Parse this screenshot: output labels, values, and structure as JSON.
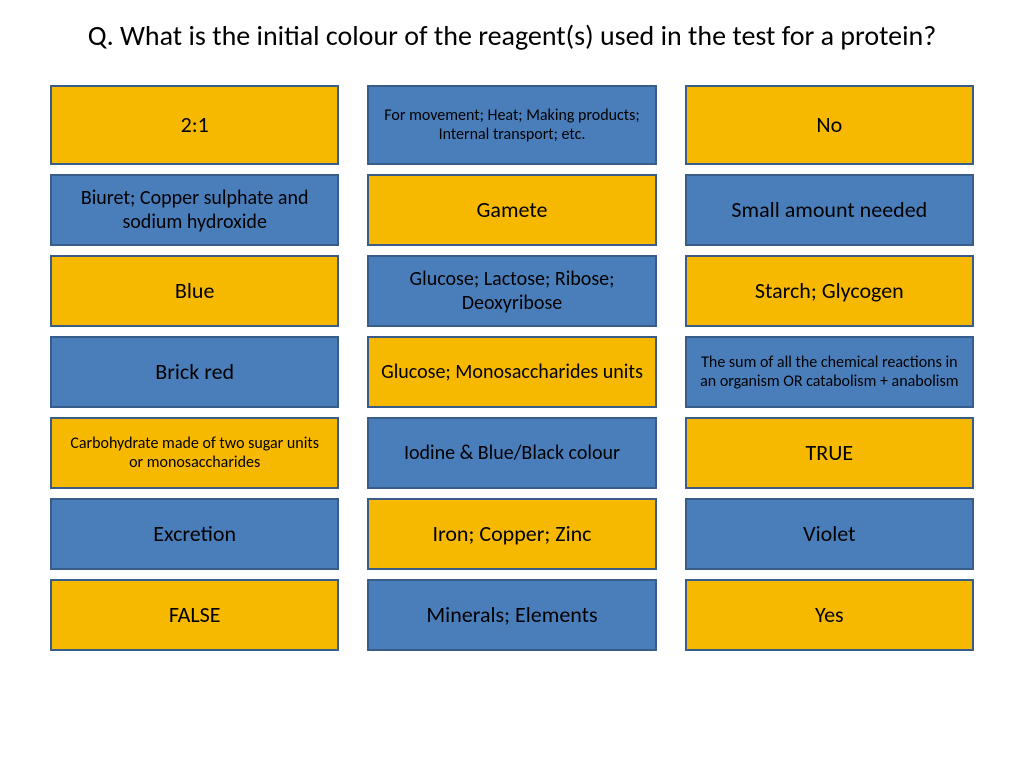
{
  "title": "Q. What is the initial colour of the reagent(s) used in the test for a protein?",
  "colors": {
    "blue_bg": "#4a7ebb",
    "gold_bg": "#f6b900",
    "border": "#385d8a",
    "text": "#000000",
    "page_bg": "#ffffff"
  },
  "columns": [
    {
      "cards": [
        {
          "text": "2:1",
          "bg": "gold",
          "size": "lg",
          "tall": true
        },
        {
          "text": "Biuret; Copper sulphate and sodium hydroxide",
          "bg": "blue",
          "size": "md"
        },
        {
          "text": "Blue",
          "bg": "gold",
          "size": "lg"
        },
        {
          "text": "Brick red",
          "bg": "blue",
          "size": "lg"
        },
        {
          "text": "Carbohydrate made of two sugar units or monosaccharides",
          "bg": "gold",
          "size": "sm"
        },
        {
          "text": "Excretion",
          "bg": "blue",
          "size": "lg"
        },
        {
          "text": "FALSE",
          "bg": "gold",
          "size": "lg"
        }
      ]
    },
    {
      "cards": [
        {
          "text": "For movement; Heat; Making products; Internal transport; etc.",
          "bg": "blue",
          "size": "sm",
          "tall": true
        },
        {
          "text": "Gamete",
          "bg": "gold",
          "size": "lg"
        },
        {
          "text": "Glucose; Lactose; Ribose; Deoxyribose",
          "bg": "blue",
          "size": "md"
        },
        {
          "text": "Glucose; Monosaccharides units",
          "bg": "gold",
          "size": "md"
        },
        {
          "text": "Iodine & Blue/Black colour",
          "bg": "blue",
          "size": "md"
        },
        {
          "text": "Iron; Copper; Zinc",
          "bg": "gold",
          "size": "lg"
        },
        {
          "text": "Minerals; Elements",
          "bg": "blue",
          "size": "lg"
        }
      ]
    },
    {
      "cards": [
        {
          "text": "No",
          "bg": "gold",
          "size": "lg",
          "tall": true
        },
        {
          "text": "Small amount needed",
          "bg": "blue",
          "size": "lg"
        },
        {
          "text": "Starch; Glycogen",
          "bg": "gold",
          "size": "lg"
        },
        {
          "text": "The sum of all the chemical reactions in an organism OR catabolism + anabolism",
          "bg": "blue",
          "size": "sm"
        },
        {
          "text": "TRUE",
          "bg": "gold",
          "size": "lg"
        },
        {
          "text": "Violet",
          "bg": "blue",
          "size": "lg"
        },
        {
          "text": "Yes",
          "bg": "gold",
          "size": "lg"
        }
      ]
    }
  ]
}
